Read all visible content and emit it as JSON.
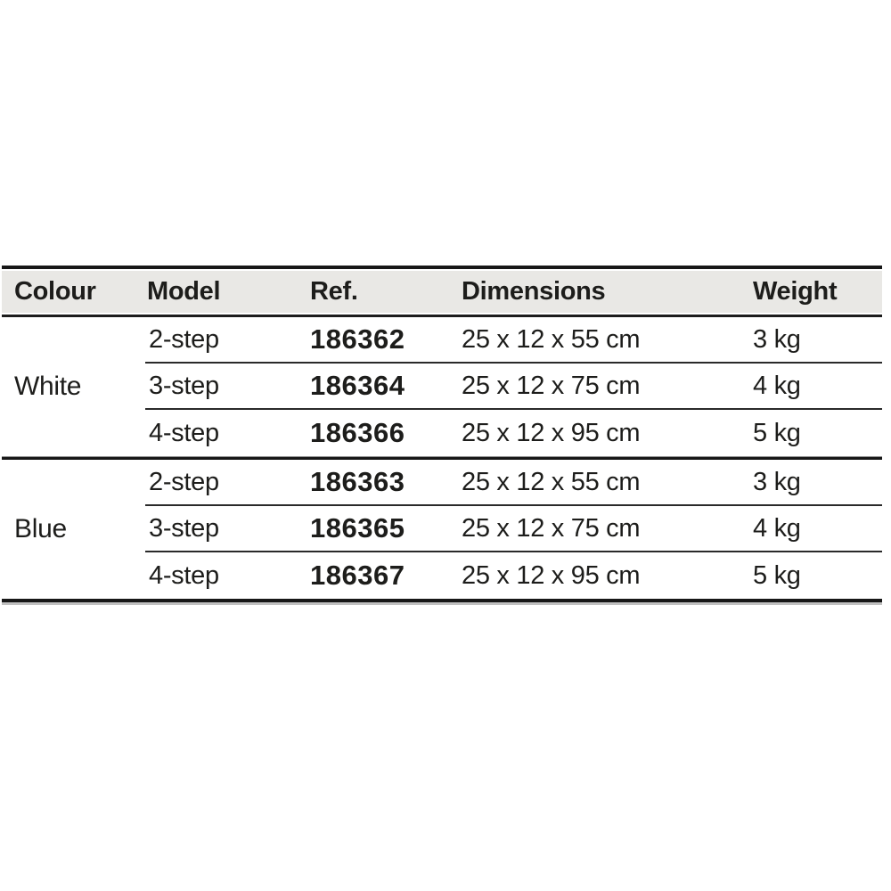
{
  "table": {
    "headers": {
      "colour": "Colour",
      "model": "Model",
      "ref": "Ref.",
      "dimensions": "Dimensions",
      "weight": "Weight"
    },
    "groups": [
      {
        "colour": "White",
        "rows": [
          {
            "model": "2-step",
            "ref": "186362",
            "dimensions": "25 x 12 x 55 cm",
            "weight": "3 kg"
          },
          {
            "model": "3-step",
            "ref": "186364",
            "dimensions": "25 x 12 x 75 cm",
            "weight": "4 kg"
          },
          {
            "model": "4-step",
            "ref": "186366",
            "dimensions": "25 x 12 x 95 cm",
            "weight": "5 kg"
          }
        ]
      },
      {
        "colour": "Blue",
        "rows": [
          {
            "model": "2-step",
            "ref": "186363",
            "dimensions": "25 x 12 x 55 cm",
            "weight": "3 kg"
          },
          {
            "model": "3-step",
            "ref": "186365",
            "dimensions": "25 x 12 x 75 cm",
            "weight": "4 kg"
          },
          {
            "model": "4-step",
            "ref": "186367",
            "dimensions": "25 x 12 x 95 cm",
            "weight": "5 kg"
          }
        ]
      }
    ]
  },
  "colors": {
    "header_background": "#e9e8e5",
    "text": "#1d1d1b",
    "rule": "#171717"
  }
}
